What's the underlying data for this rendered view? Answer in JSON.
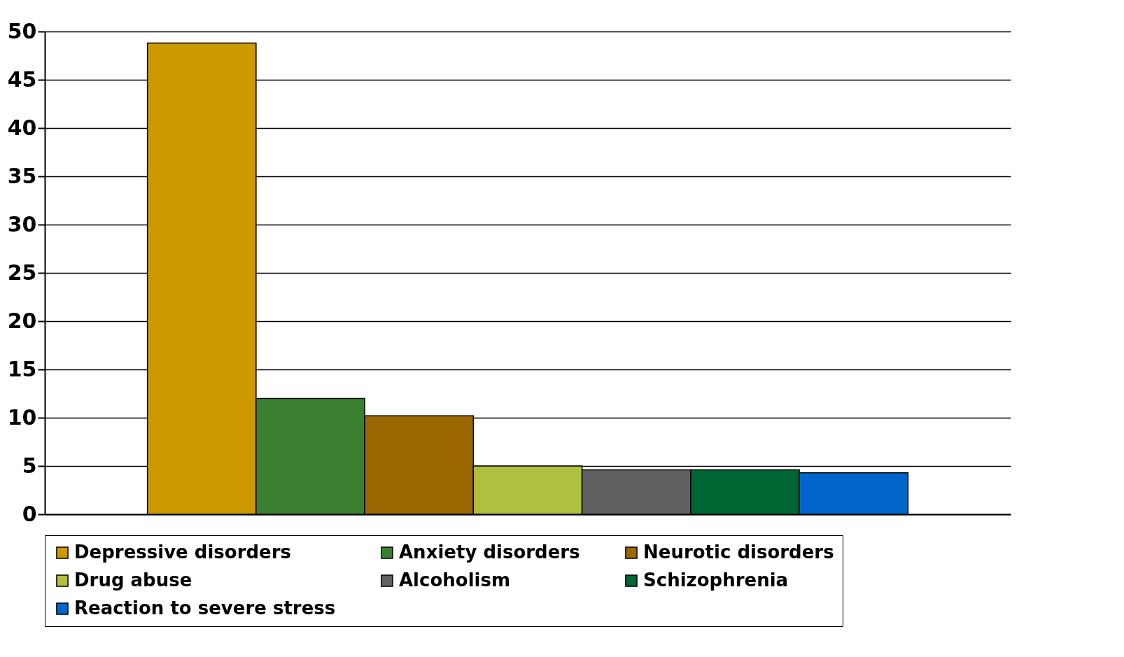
{
  "chart_data": {
    "type": "bar",
    "categories": [
      null
    ],
    "series": [
      {
        "name": "Depressive disorders",
        "color": "#cc9900",
        "values": [
          48.8
        ]
      },
      {
        "name": "Anxiety disorders",
        "color": "#3a8030",
        "values": [
          12
        ]
      },
      {
        "name": "Neurotic disorders",
        "color": "#996600",
        "values": [
          10.2
        ]
      },
      {
        "name": "Drug abuse",
        "color": "#b0bf40",
        "values": [
          5
        ]
      },
      {
        "name": "Alcoholism",
        "color": "#606060",
        "values": [
          4.6
        ]
      },
      {
        "name": "Schizophrenia",
        "color": "#006633",
        "values": [
          4.6
        ]
      },
      {
        "name": "Reaction to severe stress",
        "color": "#0066cc",
        "values": [
          4.3
        ]
      }
    ],
    "ylim": [
      0,
      50
    ],
    "yticks": [
      0,
      5,
      10,
      15,
      20,
      25,
      30,
      35,
      40,
      45,
      50
    ],
    "grid": "y",
    "legend": "bottom",
    "tick_labels": "y"
  }
}
